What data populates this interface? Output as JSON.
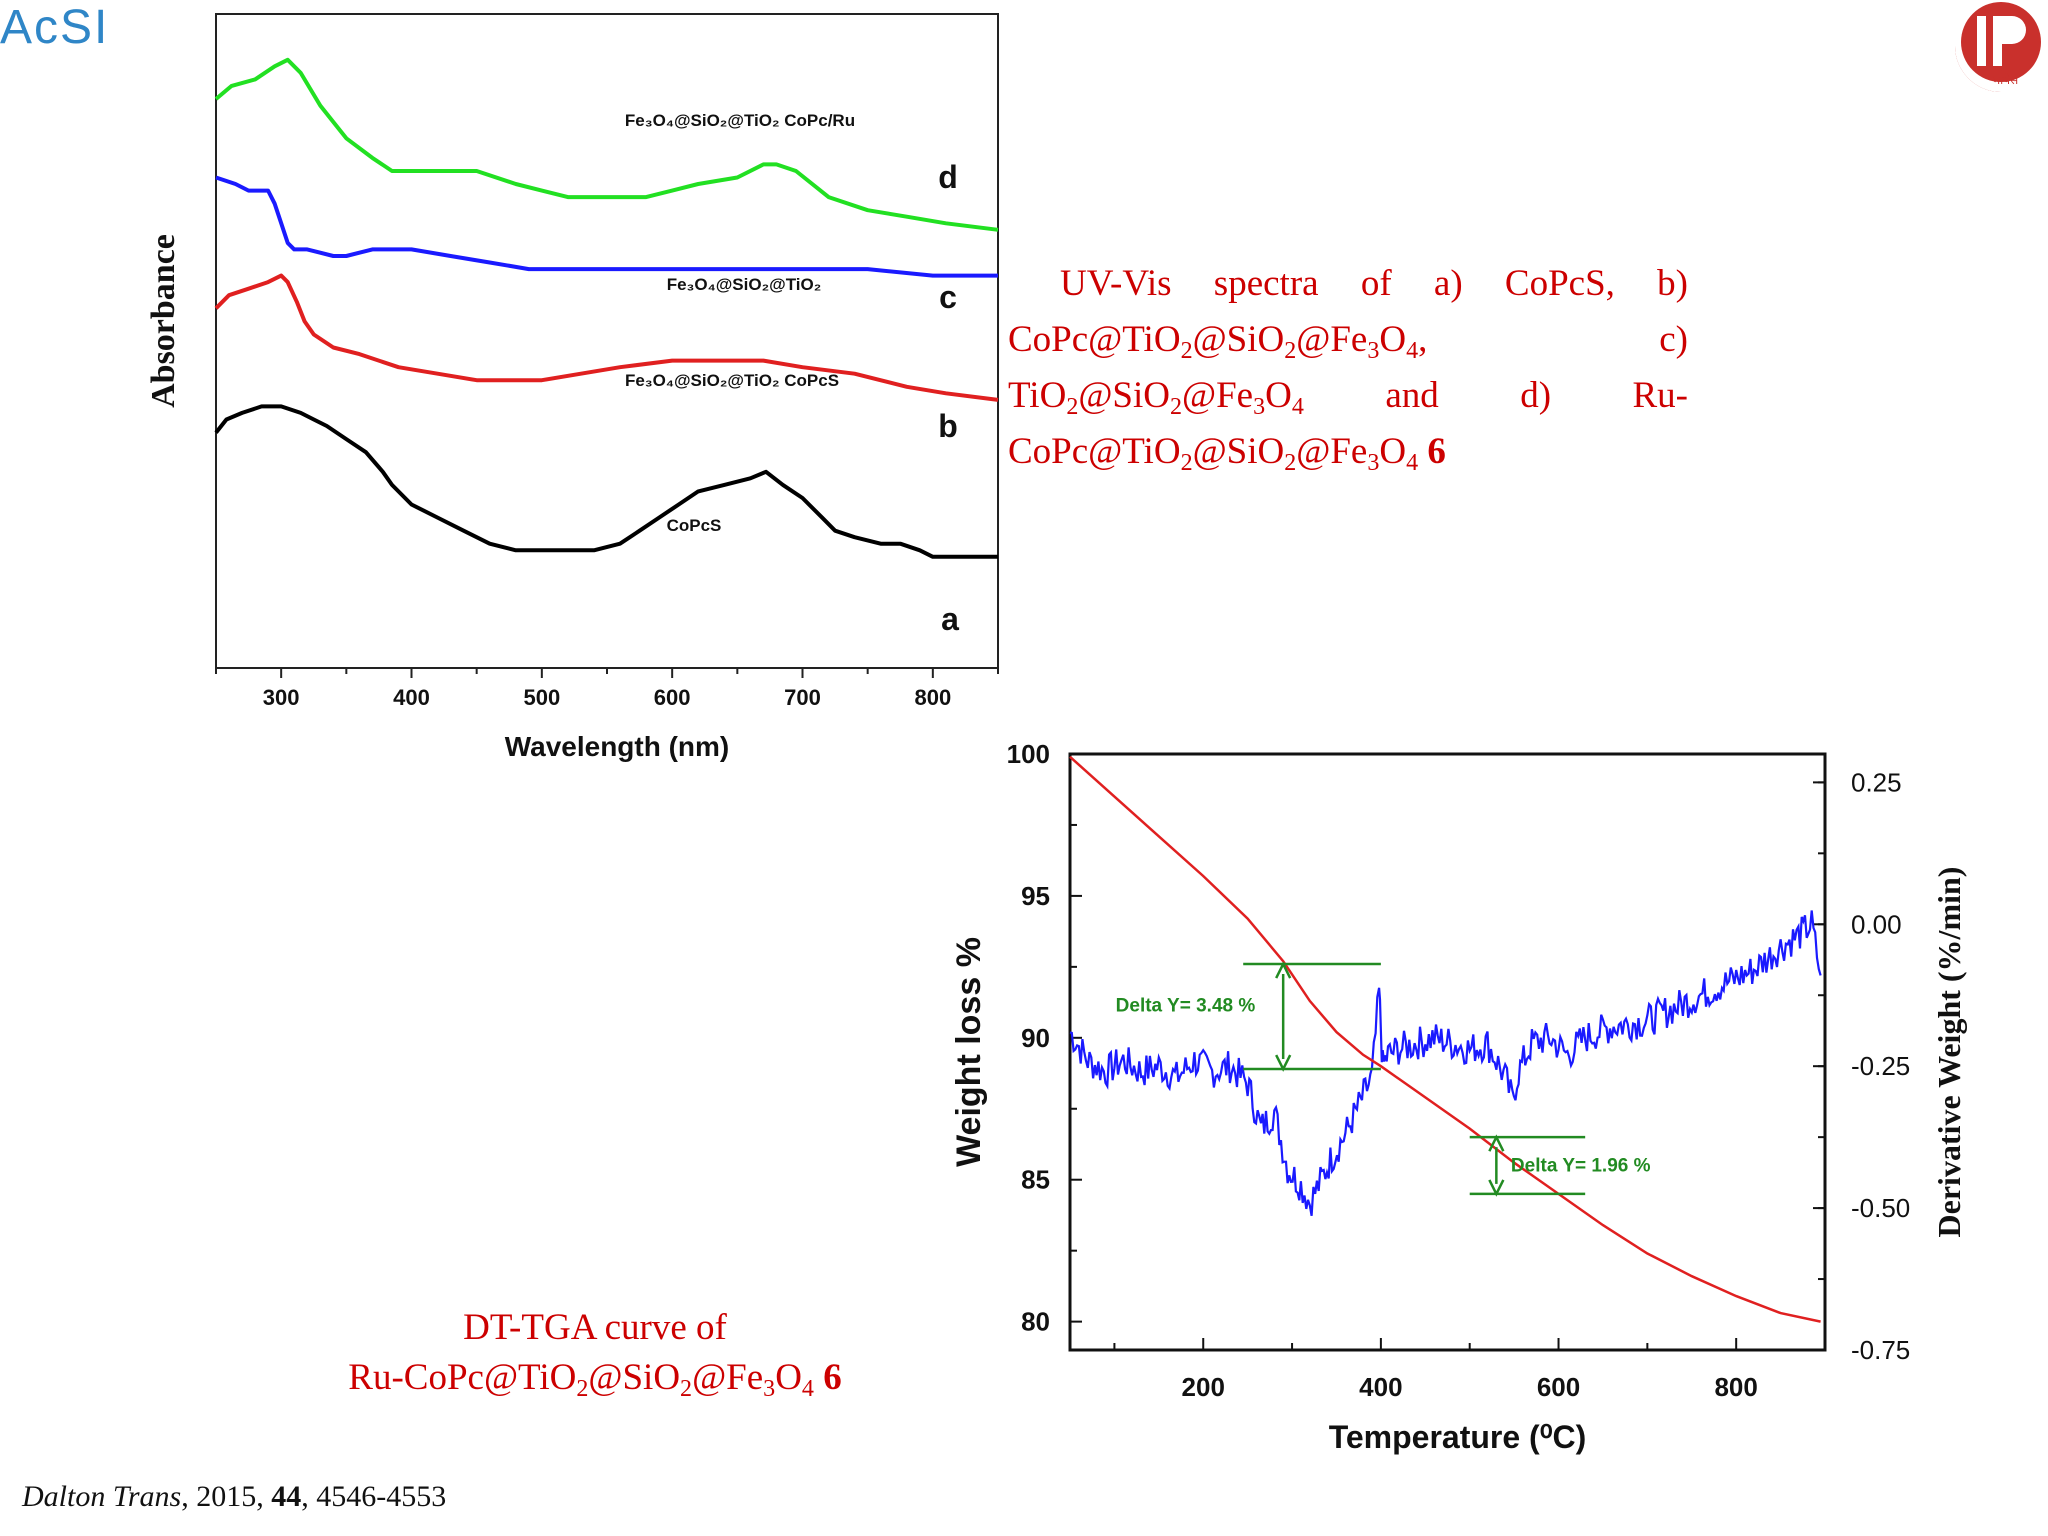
{
  "logos": {
    "left_text": "AcSI",
    "right_text": "भापेस"
  },
  "uv_caption": {
    "intro": "UV-Vis spectra of a) CoPcS, b) CoPc@TiO",
    "a": "2",
    "b": "@SiO",
    "c": "2",
    "d": "@Fe",
    "e": "3",
    "f": "O",
    "g": "4",
    "h": ", c) TiO",
    "i": "2",
    "j": "@SiO",
    "k": "2",
    "l": "@Fe",
    "m": "3",
    "n": "O",
    "o": "4",
    "p": " and d) Ru-CoPc@TiO",
    "q": "2",
    "r": "@SiO",
    "s": "2",
    "t": "@Fe",
    "u": "3",
    "v": "O",
    "w": "4",
    "x": " ",
    "num": "6"
  },
  "tga_caption": {
    "line1": "DT-TGA curve of",
    "p1": "Ru-CoPc@TiO",
    "s1": "2",
    "p2": "@SiO",
    "s2": "2",
    "p3": "@Fe",
    "s3": "3",
    "p4": "O",
    "s4": "4",
    "p5": " ",
    "num": "6"
  },
  "citation": {
    "journal": "Dalton Trans",
    "rest1": ", 2015, ",
    "volume": "44",
    "rest2": ", 4546-4553"
  },
  "chart_data": [
    {
      "type": "line",
      "xlabel": "Wavelength (nm)",
      "ylabel": "Absorbance",
      "xlim": [
        250,
        850
      ],
      "xticks": [
        300,
        400,
        500,
        600,
        700,
        800
      ],
      "grid": false,
      "colors": {
        "a": "#000000",
        "b": "#e02020",
        "c": "#1a1aff",
        "d": "#22e022"
      },
      "series": [
        {
          "letter": "d",
          "label": "Fe₃O₄@SiO₂@TiO₂ CoPc/Ru",
          "x": [
            250,
            262,
            280,
            295,
            305,
            315,
            330,
            350,
            370,
            385,
            400,
            420,
            450,
            480,
            500,
            520,
            550,
            580,
            600,
            620,
            650,
            670,
            680,
            695,
            720,
            750,
            780,
            810,
            850
          ],
          "y": [
            0.87,
            0.89,
            0.9,
            0.92,
            0.93,
            0.91,
            0.86,
            0.81,
            0.78,
            0.76,
            0.76,
            0.76,
            0.76,
            0.74,
            0.73,
            0.72,
            0.72,
            0.72,
            0.73,
            0.74,
            0.75,
            0.77,
            0.77,
            0.76,
            0.72,
            0.7,
            0.69,
            0.68,
            0.67
          ]
        },
        {
          "letter": "c",
          "label": "Fe₃O₄@SiO₂@TiO₂",
          "x": [
            250,
            265,
            275,
            290,
            295,
            300,
            305,
            310,
            320,
            340,
            350,
            370,
            400,
            430,
            460,
            490,
            520,
            560,
            600,
            650,
            700,
            750,
            800,
            850
          ],
          "y": [
            0.75,
            0.74,
            0.73,
            0.73,
            0.71,
            0.68,
            0.65,
            0.64,
            0.64,
            0.63,
            0.63,
            0.64,
            0.64,
            0.63,
            0.62,
            0.61,
            0.61,
            0.61,
            0.61,
            0.61,
            0.61,
            0.61,
            0.6,
            0.6
          ]
        },
        {
          "letter": "b",
          "label": "Fe₃O₄@SiO₂@TiO₂ CoPcS",
          "x": [
            250,
            260,
            275,
            290,
            300,
            305,
            312,
            318,
            325,
            340,
            360,
            390,
            420,
            450,
            480,
            500,
            530,
            560,
            600,
            640,
            670,
            700,
            740,
            780,
            810,
            850
          ],
          "y": [
            0.55,
            0.57,
            0.58,
            0.59,
            0.6,
            0.59,
            0.56,
            0.53,
            0.51,
            0.49,
            0.48,
            0.46,
            0.45,
            0.44,
            0.44,
            0.44,
            0.45,
            0.46,
            0.47,
            0.47,
            0.47,
            0.46,
            0.45,
            0.43,
            0.42,
            0.41
          ]
        },
        {
          "letter": "a",
          "label": "CoPcS",
          "x": [
            250,
            258,
            270,
            285,
            300,
            315,
            325,
            335,
            350,
            365,
            378,
            385,
            400,
            420,
            440,
            460,
            480,
            500,
            520,
            540,
            560,
            575,
            590,
            605,
            620,
            640,
            660,
            672,
            685,
            700,
            715,
            725,
            740,
            760,
            775,
            790,
            800,
            850
          ],
          "y": [
            0.36,
            0.38,
            0.39,
            0.4,
            0.4,
            0.39,
            0.38,
            0.37,
            0.35,
            0.33,
            0.3,
            0.28,
            0.25,
            0.23,
            0.21,
            0.19,
            0.18,
            0.18,
            0.18,
            0.18,
            0.19,
            0.21,
            0.23,
            0.25,
            0.27,
            0.28,
            0.29,
            0.3,
            0.28,
            0.26,
            0.23,
            0.21,
            0.2,
            0.19,
            0.19,
            0.18,
            0.17,
            0.17
          ]
        }
      ]
    },
    {
      "type": "line",
      "xlabel": "Temperature (⁰C)",
      "ylabel_left": "Weight loss %",
      "ylabel_right": "Derivative Weight (%/min)",
      "xlim": [
        50,
        900
      ],
      "xticks": [
        200,
        400,
        600,
        800
      ],
      "ylim_left": [
        79,
        100
      ],
      "yticks_left": [
        80,
        85,
        90,
        95,
        100
      ],
      "ylim_right": [
        -0.75,
        0.3
      ],
      "yticks_right": [
        "0.25",
        "0.00",
        "-0.25",
        "-0.50",
        "-0.75"
      ],
      "grid": false,
      "colors": {
        "weight": "#e02020",
        "derivative": "#1a1aff",
        "annotation": "#228b22"
      },
      "annotations": [
        {
          "text": "Delta Y= 3.48 %",
          "x": 290,
          "y_from": 92.6,
          "y_to": 88.9
        },
        {
          "text": "Delta Y= 1.96 %",
          "x": 530,
          "y_from": 86.5,
          "y_to": 84.5
        }
      ],
      "series": [
        {
          "name": "Weight",
          "axis": "left",
          "x": [
            50,
            100,
            150,
            200,
            250,
            290,
            320,
            350,
            380,
            400,
            450,
            500,
            550,
            600,
            650,
            700,
            750,
            800,
            850,
            895
          ],
          "y": [
            99.9,
            98.5,
            97.1,
            95.7,
            94.2,
            92.7,
            91.3,
            90.2,
            89.4,
            89.0,
            87.9,
            86.8,
            85.6,
            84.5,
            83.4,
            82.4,
            81.6,
            80.9,
            80.3,
            80.0
          ]
        },
        {
          "name": "Derivative",
          "axis": "right",
          "x": [
            50,
            70,
            90,
            110,
            130,
            150,
            170,
            190,
            210,
            230,
            250,
            265,
            280,
            295,
            310,
            320,
            330,
            345,
            360,
            375,
            390,
            398,
            402,
            408,
            420,
            440,
            460,
            480,
            500,
            520,
            540,
            548,
            555,
            570,
            590,
            610,
            630,
            660,
            700,
            740,
            780,
            820,
            850,
            870,
            885,
            895
          ],
          "y": [
            -0.19,
            -0.24,
            -0.26,
            -0.24,
            -0.26,
            -0.25,
            -0.27,
            -0.24,
            -0.26,
            -0.25,
            -0.28,
            -0.36,
            -0.33,
            -0.43,
            -0.46,
            -0.49,
            -0.46,
            -0.41,
            -0.37,
            -0.32,
            -0.27,
            -0.12,
            -0.25,
            -0.23,
            -0.22,
            -0.21,
            -0.2,
            -0.21,
            -0.22,
            -0.21,
            -0.27,
            -0.31,
            -0.26,
            -0.21,
            -0.2,
            -0.23,
            -0.2,
            -0.18,
            -0.17,
            -0.14,
            -0.11,
            -0.08,
            -0.04,
            -0.02,
            0.0,
            -0.09
          ]
        }
      ]
    }
  ]
}
